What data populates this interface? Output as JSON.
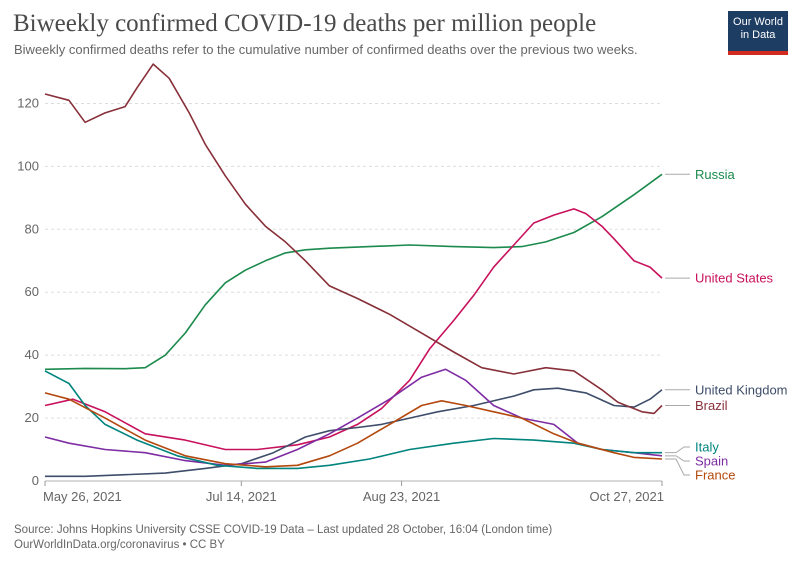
{
  "title": "Biweekly confirmed COVID-19 deaths per million people",
  "subtitle": "Biweekly confirmed deaths refer to the cumulative number of confirmed deaths over the previous two weeks.",
  "logo": {
    "line1": "Our World",
    "line2": "in Data",
    "bar_color": "#d42b21",
    "bg_color": "#1d3d63"
  },
  "footer": {
    "source": "Source: Johns Hopkins University CSSE COVID-19 Data – Last updated 28 October, 16:04 (London time)",
    "license": "OurWorldInData.org/coronavirus • CC BY"
  },
  "chart_data": {
    "type": "line",
    "title": "Biweekly confirmed COVID-19 deaths per million people",
    "xlabel": "",
    "ylabel": "",
    "x_range": [
      "2021-05-26",
      "2021-10-27"
    ],
    "ylim": [
      0,
      130
    ],
    "y_ticks": [
      0,
      20,
      40,
      60,
      80,
      100,
      120
    ],
    "x_ticks": [
      {
        "date": "2021-05-26",
        "label": "May 26, 2021"
      },
      {
        "date": "2021-07-14",
        "label": "Jul 14, 2021"
      },
      {
        "date": "2021-08-23",
        "label": "Aug 23, 2021"
      },
      {
        "date": "2021-10-27",
        "label": "Oct 27, 2021"
      }
    ],
    "grid": "horizontal-dashed",
    "legend": "right-end-labels",
    "series": [
      {
        "name": "Russia",
        "color": "#1b8a4c",
        "points": [
          [
            "2021-05-26",
            35.5
          ],
          [
            "2021-06-05",
            35.8
          ],
          [
            "2021-06-15",
            35.7
          ],
          [
            "2021-06-20",
            36.0
          ],
          [
            "2021-06-25",
            40
          ],
          [
            "2021-06-30",
            47
          ],
          [
            "2021-07-05",
            56
          ],
          [
            "2021-07-10",
            63
          ],
          [
            "2021-07-15",
            67
          ],
          [
            "2021-07-20",
            70
          ],
          [
            "2021-07-25",
            72.5
          ],
          [
            "2021-07-30",
            73.5
          ],
          [
            "2021-08-05",
            74
          ],
          [
            "2021-08-15",
            74.5
          ],
          [
            "2021-08-25",
            75
          ],
          [
            "2021-09-05",
            74.5
          ],
          [
            "2021-09-15",
            74.2
          ],
          [
            "2021-09-22",
            74.5
          ],
          [
            "2021-09-28",
            76
          ],
          [
            "2021-10-05",
            79
          ],
          [
            "2021-10-12",
            84
          ],
          [
            "2021-10-20",
            91
          ],
          [
            "2021-10-27",
            97.5
          ]
        ]
      },
      {
        "name": "United States",
        "color": "#c8115c",
        "points": [
          [
            "2021-05-26",
            24
          ],
          [
            "2021-06-02",
            26
          ],
          [
            "2021-06-10",
            22
          ],
          [
            "2021-06-20",
            15
          ],
          [
            "2021-06-30",
            13
          ],
          [
            "2021-07-10",
            10
          ],
          [
            "2021-07-18",
            10
          ],
          [
            "2021-07-28",
            11.5
          ],
          [
            "2021-08-05",
            14
          ],
          [
            "2021-08-12",
            18
          ],
          [
            "2021-08-18",
            23
          ],
          [
            "2021-08-25",
            32
          ],
          [
            "2021-08-30",
            42
          ],
          [
            "2021-09-05",
            51
          ],
          [
            "2021-09-10",
            59
          ],
          [
            "2021-09-15",
            68
          ],
          [
            "2021-09-20",
            75
          ],
          [
            "2021-09-25",
            82
          ],
          [
            "2021-09-30",
            84.5
          ],
          [
            "2021-10-05",
            86.5
          ],
          [
            "2021-10-08",
            85
          ],
          [
            "2021-10-12",
            81
          ],
          [
            "2021-10-15",
            77
          ],
          [
            "2021-10-20",
            70
          ],
          [
            "2021-10-24",
            68
          ],
          [
            "2021-10-27",
            64.5
          ]
        ]
      },
      {
        "name": "United Kingdom",
        "color": "#3e4d6a",
        "points": [
          [
            "2021-05-26",
            1.5
          ],
          [
            "2021-06-05",
            1.5
          ],
          [
            "2021-06-15",
            2
          ],
          [
            "2021-06-25",
            2.5
          ],
          [
            "2021-07-05",
            4
          ],
          [
            "2021-07-14",
            5.5
          ],
          [
            "2021-07-22",
            9
          ],
          [
            "2021-07-30",
            14
          ],
          [
            "2021-08-05",
            16
          ],
          [
            "2021-08-12",
            17
          ],
          [
            "2021-08-18",
            18
          ],
          [
            "2021-08-25",
            20
          ],
          [
            "2021-09-01",
            22
          ],
          [
            "2021-09-10",
            24
          ],
          [
            "2021-09-20",
            27
          ],
          [
            "2021-09-25",
            29
          ],
          [
            "2021-10-01",
            29.5
          ],
          [
            "2021-10-08",
            28
          ],
          [
            "2021-10-15",
            24
          ],
          [
            "2021-10-20",
            23.5
          ],
          [
            "2021-10-24",
            26
          ],
          [
            "2021-10-27",
            29
          ]
        ]
      },
      {
        "name": "Brazil",
        "color": "#883039",
        "points": [
          [
            "2021-05-26",
            123
          ],
          [
            "2021-06-01",
            121
          ],
          [
            "2021-06-05",
            114
          ],
          [
            "2021-06-10",
            117
          ],
          [
            "2021-06-15",
            119
          ],
          [
            "2021-06-18",
            125
          ],
          [
            "2021-06-22",
            132.5
          ],
          [
            "2021-06-26",
            128
          ],
          [
            "2021-07-01",
            117
          ],
          [
            "2021-07-05",
            107
          ],
          [
            "2021-07-10",
            97
          ],
          [
            "2021-07-15",
            88
          ],
          [
            "2021-07-20",
            81
          ],
          [
            "2021-07-25",
            76
          ],
          [
            "2021-07-30",
            70
          ],
          [
            "2021-08-05",
            62
          ],
          [
            "2021-08-12",
            58
          ],
          [
            "2021-08-20",
            53
          ],
          [
            "2021-08-28",
            47
          ],
          [
            "2021-09-05",
            41
          ],
          [
            "2021-09-12",
            36
          ],
          [
            "2021-09-20",
            34
          ],
          [
            "2021-09-28",
            36
          ],
          [
            "2021-10-05",
            35
          ],
          [
            "2021-10-12",
            29
          ],
          [
            "2021-10-16",
            25
          ],
          [
            "2021-10-22",
            22
          ],
          [
            "2021-10-25",
            21.5
          ],
          [
            "2021-10-27",
            24
          ]
        ]
      },
      {
        "name": "Spain",
        "color": "#7e2ca3",
        "points": [
          [
            "2021-05-26",
            14
          ],
          [
            "2021-06-01",
            12
          ],
          [
            "2021-06-10",
            10
          ],
          [
            "2021-06-20",
            9
          ],
          [
            "2021-06-30",
            6.5
          ],
          [
            "2021-07-10",
            5
          ],
          [
            "2021-07-20",
            6
          ],
          [
            "2021-07-28",
            10
          ],
          [
            "2021-08-05",
            15
          ],
          [
            "2021-08-12",
            20
          ],
          [
            "2021-08-20",
            26
          ],
          [
            "2021-08-28",
            33
          ],
          [
            "2021-09-03",
            35.5
          ],
          [
            "2021-09-08",
            32
          ],
          [
            "2021-09-15",
            24
          ],
          [
            "2021-09-22",
            20
          ],
          [
            "2021-09-30",
            18
          ],
          [
            "2021-10-06",
            12
          ],
          [
            "2021-10-12",
            10
          ],
          [
            "2021-10-20",
            9
          ],
          [
            "2021-10-27",
            8
          ]
        ]
      },
      {
        "name": "Italy",
        "color": "#00847e",
        "points": [
          [
            "2021-05-26",
            35
          ],
          [
            "2021-06-01",
            31
          ],
          [
            "2021-06-05",
            24
          ],
          [
            "2021-06-10",
            18
          ],
          [
            "2021-06-18",
            13
          ],
          [
            "2021-06-28",
            8
          ],
          [
            "2021-07-08",
            5
          ],
          [
            "2021-07-18",
            4
          ],
          [
            "2021-07-28",
            4
          ],
          [
            "2021-08-05",
            5
          ],
          [
            "2021-08-15",
            7
          ],
          [
            "2021-08-25",
            10
          ],
          [
            "2021-09-05",
            12
          ],
          [
            "2021-09-15",
            13.5
          ],
          [
            "2021-09-25",
            13
          ],
          [
            "2021-10-05",
            12
          ],
          [
            "2021-10-12",
            10
          ],
          [
            "2021-10-20",
            9
          ],
          [
            "2021-10-27",
            9
          ]
        ]
      },
      {
        "name": "France",
        "color": "#b4480d",
        "points": [
          [
            "2021-05-26",
            28
          ],
          [
            "2021-06-01",
            26
          ],
          [
            "2021-06-10",
            20
          ],
          [
            "2021-06-20",
            13
          ],
          [
            "2021-06-30",
            8
          ],
          [
            "2021-07-10",
            5.5
          ],
          [
            "2021-07-20",
            4.5
          ],
          [
            "2021-07-28",
            5
          ],
          [
            "2021-08-05",
            8
          ],
          [
            "2021-08-12",
            12
          ],
          [
            "2021-08-20",
            18
          ],
          [
            "2021-08-28",
            24
          ],
          [
            "2021-09-02",
            25.5
          ],
          [
            "2021-09-08",
            24
          ],
          [
            "2021-09-15",
            22
          ],
          [
            "2021-09-22",
            20
          ],
          [
            "2021-09-30",
            15
          ],
          [
            "2021-10-06",
            12
          ],
          [
            "2021-10-15",
            9
          ],
          [
            "2021-10-20",
            7.5
          ],
          [
            "2021-10-27",
            7
          ]
        ]
      }
    ]
  }
}
